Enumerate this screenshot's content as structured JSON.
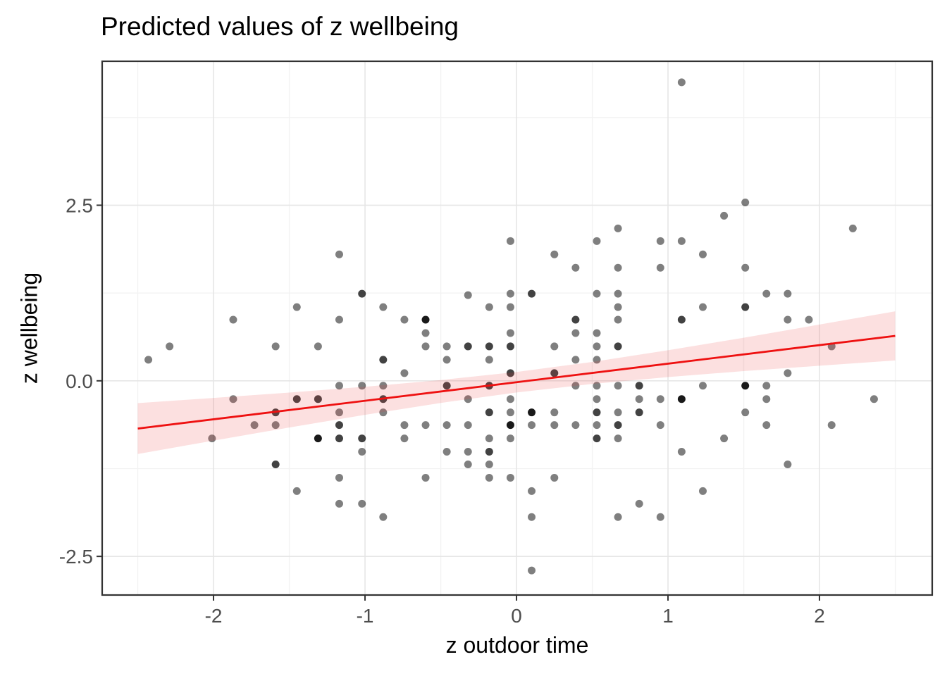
{
  "chart_data": {
    "type": "scatter",
    "title": "Predicted values of z wellbeing",
    "xlabel": "z outdoor time",
    "ylabel": "z wellbeing",
    "xlim": [
      -2.735,
      2.744
    ],
    "ylim": [
      -3.05,
      4.55
    ],
    "grid": true,
    "legend": "none",
    "x_ticks": {
      "values": [
        -2,
        -1,
        0,
        1,
        2
      ],
      "labels": [
        "-2",
        "-1",
        "0",
        "1",
        "2"
      ],
      "minor": [
        -2.5,
        -1.5,
        -0.5,
        0.5,
        1.5,
        2.5
      ]
    },
    "y_ticks": {
      "values": [
        2.5,
        0,
        -2.5
      ],
      "labels": [
        "2.5",
        "0.0",
        "-2.5"
      ],
      "minor": [
        3.75,
        1.25,
        -1.25
      ]
    },
    "regression_line": {
      "x0": -2.5,
      "y0": -0.68,
      "x1": 2.5,
      "y1": 0.64,
      "color": "#ee1111",
      "width": 2.8
    },
    "confidence_band": {
      "x": [
        -2.5,
        -2.0,
        -1.5,
        -1.0,
        -0.5,
        0.0,
        0.5,
        1.0,
        1.5,
        2.0,
        2.5
      ],
      "upper": [
        -0.318,
        -0.244,
        -0.167,
        -0.084,
        0.011,
        0.126,
        0.269,
        0.435,
        0.614,
        0.801,
        0.99
      ],
      "lower": [
        -1.042,
        -0.852,
        -0.665,
        -0.484,
        -0.315,
        -0.166,
        -0.045,
        0.053,
        0.138,
        0.215,
        0.29
      ],
      "fill": "rgba(238,60,60,0.16)"
    },
    "point_style": {
      "radius": 5.5,
      "color": "#000000",
      "opacity": {
        "1": 0.5,
        "2": 0.74,
        "3": 0.9
      }
    },
    "points": [
      [
        1.09,
        4.25,
        1
      ],
      [
        1.51,
        2.54,
        1
      ],
      [
        1.37,
        2.35,
        1
      ],
      [
        0.67,
        2.17,
        1
      ],
      [
        2.22,
        2.17,
        1
      ],
      [
        -0.04,
        1.99,
        1
      ],
      [
        0.53,
        1.99,
        1
      ],
      [
        0.95,
        1.99,
        1
      ],
      [
        1.09,
        1.99,
        1
      ],
      [
        -1.17,
        1.8,
        1
      ],
      [
        0.25,
        1.8,
        1
      ],
      [
        1.23,
        1.8,
        1
      ],
      [
        0.39,
        1.61,
        1
      ],
      [
        0.67,
        1.61,
        1
      ],
      [
        0.95,
        1.61,
        1
      ],
      [
        1.51,
        1.61,
        1
      ],
      [
        -1.02,
        1.24,
        2
      ],
      [
        -0.32,
        1.22,
        1
      ],
      [
        -0.04,
        1.24,
        1
      ],
      [
        0.1,
        1.24,
        2
      ],
      [
        0.53,
        1.24,
        1
      ],
      [
        0.67,
        1.24,
        1
      ],
      [
        1.65,
        1.24,
        1
      ],
      [
        1.79,
        1.24,
        1
      ],
      [
        -1.45,
        1.05,
        1
      ],
      [
        -0.88,
        1.05,
        1
      ],
      [
        -0.18,
        1.05,
        1
      ],
      [
        -0.04,
        1.05,
        1
      ],
      [
        0.67,
        1.05,
        1
      ],
      [
        1.23,
        1.05,
        1
      ],
      [
        1.51,
        1.05,
        2
      ],
      [
        -1.87,
        0.87,
        1
      ],
      [
        -1.17,
        0.87,
        1
      ],
      [
        -0.74,
        0.87,
        1
      ],
      [
        -0.6,
        0.87,
        3
      ],
      [
        0.39,
        0.87,
        2
      ],
      [
        0.67,
        0.87,
        1
      ],
      [
        1.09,
        0.87,
        2
      ],
      [
        1.79,
        0.87,
        1
      ],
      [
        1.93,
        0.87,
        1
      ],
      [
        -0.6,
        0.68,
        1
      ],
      [
        -0.04,
        0.68,
        1
      ],
      [
        0.39,
        0.68,
        1
      ],
      [
        0.53,
        0.68,
        1
      ],
      [
        -2.29,
        0.49,
        1
      ],
      [
        -1.59,
        0.49,
        1
      ],
      [
        -1.31,
        0.49,
        1
      ],
      [
        -0.6,
        0.49,
        1
      ],
      [
        -0.46,
        0.49,
        1
      ],
      [
        -0.32,
        0.49,
        2
      ],
      [
        -0.18,
        0.49,
        2
      ],
      [
        -0.04,
        0.49,
        2
      ],
      [
        0.25,
        0.49,
        1
      ],
      [
        0.53,
        0.49,
        1
      ],
      [
        0.67,
        0.49,
        2
      ],
      [
        2.08,
        0.49,
        1
      ],
      [
        -2.43,
        0.3,
        1
      ],
      [
        -0.88,
        0.3,
        2
      ],
      [
        -0.46,
        0.3,
        1
      ],
      [
        -0.18,
        0.3,
        1
      ],
      [
        0.39,
        0.3,
        1
      ],
      [
        0.53,
        0.3,
        1
      ],
      [
        -0.74,
        0.11,
        1
      ],
      [
        -0.04,
        0.11,
        2
      ],
      [
        0.25,
        0.11,
        2
      ],
      [
        1.79,
        0.11,
        1
      ],
      [
        -1.17,
        -0.07,
        1
      ],
      [
        -1.02,
        -0.07,
        1
      ],
      [
        -0.88,
        -0.07,
        1
      ],
      [
        -0.46,
        -0.07,
        2
      ],
      [
        -0.18,
        -0.07,
        2
      ],
      [
        0.39,
        -0.07,
        1
      ],
      [
        0.53,
        -0.07,
        1
      ],
      [
        0.67,
        -0.07,
        1
      ],
      [
        0.81,
        -0.07,
        2
      ],
      [
        1.23,
        -0.07,
        1
      ],
      [
        1.51,
        -0.07,
        3
      ],
      [
        1.65,
        -0.07,
        1
      ],
      [
        -1.87,
        -0.26,
        1
      ],
      [
        -1.45,
        -0.26,
        2
      ],
      [
        -1.31,
        -0.26,
        2
      ],
      [
        -0.88,
        -0.26,
        2
      ],
      [
        -0.32,
        -0.26,
        1
      ],
      [
        -0.04,
        -0.26,
        1
      ],
      [
        0.53,
        -0.26,
        1
      ],
      [
        0.81,
        -0.26,
        1
      ],
      [
        0.95,
        -0.26,
        1
      ],
      [
        1.09,
        -0.26,
        3
      ],
      [
        1.65,
        -0.26,
        1
      ],
      [
        2.36,
        -0.26,
        1
      ],
      [
        -1.59,
        -0.45,
        2
      ],
      [
        -1.17,
        -0.45,
        1
      ],
      [
        -0.88,
        -0.45,
        1
      ],
      [
        -0.18,
        -0.45,
        2
      ],
      [
        -0.04,
        -0.45,
        1
      ],
      [
        0.1,
        -0.45,
        3
      ],
      [
        0.25,
        -0.45,
        1
      ],
      [
        0.53,
        -0.45,
        2
      ],
      [
        0.67,
        -0.45,
        1
      ],
      [
        0.81,
        -0.45,
        2
      ],
      [
        1.51,
        -0.45,
        1
      ],
      [
        -1.73,
        -0.63,
        1
      ],
      [
        -1.59,
        -0.63,
        1
      ],
      [
        -1.17,
        -0.63,
        2
      ],
      [
        -0.74,
        -0.63,
        1
      ],
      [
        -0.6,
        -0.63,
        1
      ],
      [
        -0.46,
        -0.63,
        1
      ],
      [
        -0.32,
        -0.63,
        1
      ],
      [
        -0.04,
        -0.63,
        3
      ],
      [
        0.1,
        -0.63,
        1
      ],
      [
        0.25,
        -0.63,
        1
      ],
      [
        0.39,
        -0.63,
        1
      ],
      [
        0.53,
        -0.63,
        1
      ],
      [
        0.67,
        -0.63,
        2
      ],
      [
        0.95,
        -0.63,
        1
      ],
      [
        1.65,
        -0.63,
        1
      ],
      [
        2.08,
        -0.63,
        1
      ],
      [
        -2.01,
        -0.82,
        1
      ],
      [
        -1.31,
        -0.82,
        3
      ],
      [
        -1.17,
        -0.82,
        2
      ],
      [
        -1.02,
        -0.82,
        2
      ],
      [
        -0.74,
        -0.82,
        1
      ],
      [
        -0.18,
        -0.82,
        1
      ],
      [
        -0.04,
        -0.82,
        1
      ],
      [
        0.53,
        -0.82,
        2
      ],
      [
        0.67,
        -0.82,
        1
      ],
      [
        1.37,
        -0.82,
        1
      ],
      [
        -1.02,
        -1.01,
        1
      ],
      [
        -0.46,
        -1.01,
        1
      ],
      [
        -0.32,
        -1.01,
        1
      ],
      [
        -0.18,
        -1.01,
        2
      ],
      [
        1.09,
        -1.01,
        1
      ],
      [
        -1.59,
        -1.19,
        2
      ],
      [
        -0.32,
        -1.19,
        1
      ],
      [
        -0.18,
        -1.19,
        1
      ],
      [
        1.79,
        -1.19,
        1
      ],
      [
        -1.17,
        -1.38,
        1
      ],
      [
        -0.6,
        -1.38,
        1
      ],
      [
        -0.18,
        -1.38,
        1
      ],
      [
        -0.04,
        -1.38,
        1
      ],
      [
        0.25,
        -1.38,
        1
      ],
      [
        -1.45,
        -1.57,
        1
      ],
      [
        0.1,
        -1.57,
        1
      ],
      [
        1.23,
        -1.57,
        1
      ],
      [
        -1.17,
        -1.75,
        1
      ],
      [
        -1.02,
        -1.75,
        1
      ],
      [
        0.81,
        -1.75,
        1
      ],
      [
        -0.88,
        -1.94,
        1
      ],
      [
        0.1,
        -1.94,
        1
      ],
      [
        0.67,
        -1.94,
        1
      ],
      [
        0.95,
        -1.94,
        1
      ],
      [
        0.1,
        -2.7,
        1
      ]
    ]
  },
  "theme": {
    "background": "#ffffff",
    "panel_border": "#333333",
    "grid_major": "#e6e6e6",
    "grid_minor": "#f2f2f2",
    "tick_color": "#333333",
    "tick_label_color": "#4d4d4d",
    "text_color": "#000000",
    "tick_label_size": 28,
    "tick_length": 8
  }
}
